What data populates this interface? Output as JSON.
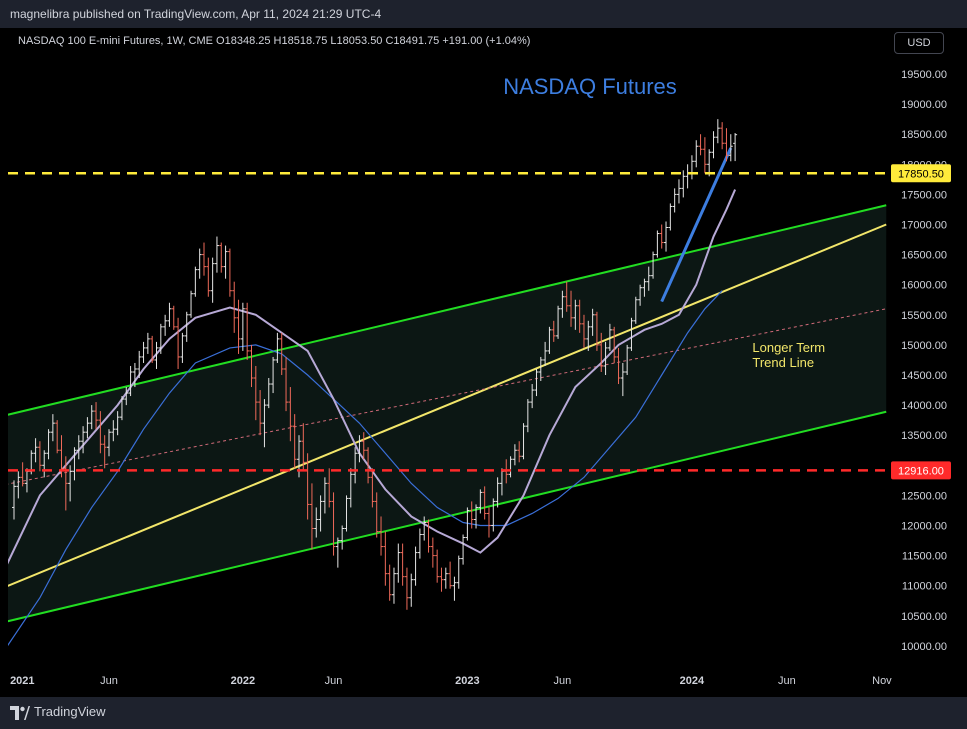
{
  "header": {
    "published": "magnelibra published on TradingView.com, Apr 11, 2024 21:29 UTC-4"
  },
  "symbol_info": "NASDAQ 100 E-mini Futures, 1W, CME  O18348.25  H18518.75  L18053.50  C18491.75  +191.00 (+1.04%)",
  "currency_button": "USD",
  "footer": {
    "brand": "TradingView",
    "logo": "tradingview-logo-icon"
  },
  "colors": {
    "background": "#000000",
    "up_bar": "#e6e6e6",
    "down_bar": "#f06a5a",
    "channel_green": "#22dd22",
    "trend_yellow": "#f2e66a",
    "resistance_dash": "#ffeb3b",
    "support_dash": "#ff2a2a",
    "title_blue": "#3d7ee0",
    "ma_fast": "#b7a9d6",
    "ma_slow": "#3a6fd8",
    "text": "#d1d4dc"
  },
  "chart_data": {
    "type": "candlestick",
    "title": "NASDAQ Futures",
    "y_axis": {
      "min": 9700,
      "max": 19900,
      "ticks": [
        10000,
        10500,
        11000,
        11500,
        12000,
        12500,
        13000,
        13500,
        14000,
        14500,
        15000,
        15500,
        16000,
        16500,
        17000,
        17500,
        18000,
        18500,
        19000,
        19500
      ],
      "tick_labels": [
        "10000.00",
        "10500.00",
        "11000.00",
        "11500.00",
        "12000.00",
        "12500.00",
        "13000.00",
        "13500.00",
        "14000.00",
        "14500.00",
        "15000.00",
        "15500.00",
        "16000.00",
        "16500.00",
        "17000.00",
        "17500.00",
        "18000.00",
        "18500.00",
        "19000.00",
        "19500.00"
      ],
      "price_tags": [
        {
          "label": "17850.50",
          "value": 17850.5,
          "style": "yellow"
        },
        {
          "label": "12916.00",
          "value": 12916.0,
          "style": "red"
        }
      ]
    },
    "x_axis": {
      "week_min": 0,
      "week_max": 202,
      "ticks": [
        {
          "label": "2021",
          "week": 1,
          "bold": true
        },
        {
          "label": "Jun",
          "week": 22,
          "bold": false
        },
        {
          "label": "2022",
          "week": 53,
          "bold": true
        },
        {
          "label": "Jun",
          "week": 74,
          "bold": false
        },
        {
          "label": "2023",
          "week": 105,
          "bold": true
        },
        {
          "label": "Jun",
          "week": 127,
          "bold": false
        },
        {
          "label": "2024",
          "week": 157,
          "bold": true
        },
        {
          "label": "Jun",
          "week": 179,
          "bold": false
        },
        {
          "label": "Nov",
          "week": 201,
          "bold": false
        }
      ]
    },
    "horizontal_lines": [
      {
        "value": 17850.5,
        "color": "#ffeb3b",
        "dash": "dashed"
      },
      {
        "value": 12916.0,
        "color": "#ff2a2a",
        "dash": "dashed"
      }
    ],
    "trend_lines": [
      {
        "name": "channel-upper",
        "from": [
          -2,
          13830
        ],
        "to": [
          202,
          17320
        ],
        "color": "#22dd22",
        "dash": "solid"
      },
      {
        "name": "channel-lower",
        "from": [
          -2,
          10400
        ],
        "to": [
          202,
          13890
        ],
        "color": "#22dd22",
        "dash": "solid"
      },
      {
        "name": "longer-term-trend",
        "from": [
          -2,
          10980
        ],
        "to": [
          202,
          17000
        ],
        "color": "#f2e66a",
        "dash": "solid"
      },
      {
        "name": "mid-channel",
        "from": [
          -2,
          12680
        ],
        "to": [
          202,
          15600
        ],
        "color": "#d06a78",
        "dash": "dotted"
      },
      {
        "name": "short-term-trend",
        "from": [
          150,
          15720
        ],
        "to": [
          166,
          18270
        ],
        "color": "#3d7ee0",
        "dash": "solid"
      }
    ],
    "annotations": [
      {
        "text_lines": [
          "Longer Term",
          "Trend Line"
        ],
        "week": 171,
        "value": 14880,
        "color": "#f2e66a"
      }
    ],
    "ma_fast": [
      [
        -2,
        11300
      ],
      [
        6,
        12500
      ],
      [
        12,
        13000
      ],
      [
        18,
        13500
      ],
      [
        24,
        14000
      ],
      [
        30,
        14600
      ],
      [
        36,
        15100
      ],
      [
        42,
        15450
      ],
      [
        50,
        15620
      ],
      [
        56,
        15500
      ],
      [
        62,
        15200
      ],
      [
        68,
        14900
      ],
      [
        74,
        14100
      ],
      [
        80,
        13200
      ],
      [
        86,
        12600
      ],
      [
        92,
        12150
      ],
      [
        98,
        11900
      ],
      [
        104,
        11700
      ],
      [
        108,
        11550
      ],
      [
        112,
        11800
      ],
      [
        118,
        12500
      ],
      [
        124,
        13500
      ],
      [
        130,
        14300
      ],
      [
        136,
        14700
      ],
      [
        140,
        15000
      ],
      [
        146,
        15250
      ],
      [
        150,
        15350
      ],
      [
        154,
        15500
      ],
      [
        158,
        16000
      ],
      [
        162,
        16800
      ],
      [
        165,
        17250
      ],
      [
        167,
        17580
      ]
    ],
    "ma_slow": [
      [
        -2,
        9950
      ],
      [
        6,
        10800
      ],
      [
        12,
        11600
      ],
      [
        18,
        12300
      ],
      [
        24,
        12900
      ],
      [
        30,
        13600
      ],
      [
        36,
        14200
      ],
      [
        42,
        14700
      ],
      [
        50,
        14950
      ],
      [
        56,
        15000
      ],
      [
        62,
        14850
      ],
      [
        68,
        14500
      ],
      [
        74,
        14100
      ],
      [
        80,
        13700
      ],
      [
        86,
        13200
      ],
      [
        92,
        12700
      ],
      [
        98,
        12300
      ],
      [
        104,
        12050
      ],
      [
        108,
        12000
      ],
      [
        114,
        12000
      ],
      [
        120,
        12200
      ],
      [
        126,
        12450
      ],
      [
        132,
        12800
      ],
      [
        138,
        13300
      ],
      [
        144,
        13800
      ],
      [
        150,
        14500
      ],
      [
        156,
        15200
      ],
      [
        160,
        15600
      ],
      [
        164,
        15900
      ]
    ],
    "ohlc": [
      [
        12300,
        12750,
        12100,
        12650
      ],
      [
        12650,
        12900,
        12450,
        12800
      ],
      [
        12800,
        13050,
        12650,
        12700
      ],
      [
        12700,
        12950,
        12550,
        12900
      ],
      [
        12900,
        13250,
        12850,
        13200
      ],
      [
        13200,
        13450,
        13050,
        13300
      ],
      [
        13300,
        13400,
        12900,
        13000
      ],
      [
        13000,
        13250,
        12800,
        13200
      ],
      [
        13200,
        13600,
        13100,
        13550
      ],
      [
        13550,
        13850,
        13400,
        13700
      ],
      [
        13700,
        13750,
        13200,
        13250
      ],
      [
        13250,
        13500,
        12800,
        12950
      ],
      [
        12950,
        13150,
        12250,
        12700
      ],
      [
        12700,
        13000,
        12400,
        12900
      ],
      [
        12900,
        13300,
        12750,
        13250
      ],
      [
        13250,
        13500,
        13100,
        13400
      ],
      [
        13400,
        13650,
        13200,
        13550
      ],
      [
        13550,
        13800,
        13450,
        13700
      ],
      [
        13700,
        14000,
        13600,
        13900
      ],
      [
        13900,
        14050,
        13600,
        13750
      ],
      [
        13750,
        13900,
        13200,
        13350
      ],
      [
        13350,
        13500,
        12950,
        13300
      ],
      [
        13300,
        13600,
        13150,
        13550
      ],
      [
        13550,
        13750,
        13400,
        13600
      ],
      [
        13600,
        13900,
        13500,
        13800
      ],
      [
        13800,
        14150,
        13750,
        14100
      ],
      [
        14100,
        14300,
        14000,
        14200
      ],
      [
        14200,
        14650,
        14150,
        14550
      ],
      [
        14550,
        14700,
        14300,
        14600
      ],
      [
        14600,
        14900,
        14450,
        14800
      ],
      [
        14800,
        15050,
        14700,
        14950
      ],
      [
        14950,
        15200,
        14850,
        15100
      ],
      [
        15100,
        15150,
        14700,
        14750
      ],
      [
        14750,
        15050,
        14600,
        14950
      ],
      [
        14950,
        15350,
        14850,
        15300
      ],
      [
        15300,
        15500,
        15150,
        15400
      ],
      [
        15400,
        15700,
        15300,
        15600
      ],
      [
        15600,
        15650,
        15250,
        15300
      ],
      [
        15300,
        15450,
        14600,
        14800
      ],
      [
        14800,
        15200,
        14700,
        15150
      ],
      [
        15150,
        15550,
        15050,
        15500
      ],
      [
        15500,
        15900,
        15450,
        15850
      ],
      [
        15850,
        16300,
        15800,
        16250
      ],
      [
        16250,
        16600,
        16100,
        16500
      ],
      [
        16500,
        16700,
        16150,
        16300
      ],
      [
        16300,
        16450,
        15800,
        15900
      ],
      [
        15900,
        16450,
        15700,
        16350
      ],
      [
        16350,
        16800,
        16200,
        16650
      ],
      [
        16650,
        16700,
        16200,
        16300
      ],
      [
        16300,
        16650,
        16100,
        16550
      ],
      [
        16550,
        16600,
        15800,
        15900
      ],
      [
        15900,
        16050,
        15200,
        15450
      ],
      [
        15450,
        15750,
        14850,
        15100
      ],
      [
        15100,
        15700,
        14900,
        15600
      ],
      [
        15600,
        15700,
        14750,
        14900
      ],
      [
        14900,
        15000,
        14300,
        14450
      ],
      [
        14450,
        14650,
        13750,
        14050
      ],
      [
        14050,
        14250,
        13500,
        13700
      ],
      [
        13700,
        14100,
        13300,
        14000
      ],
      [
        14000,
        14450,
        13950,
        14350
      ],
      [
        14350,
        14800,
        14200,
        14750
      ],
      [
        14750,
        15200,
        14700,
        15100
      ],
      [
        15100,
        15200,
        14500,
        14600
      ],
      [
        14600,
        14800,
        13900,
        14050
      ],
      [
        14050,
        14300,
        13400,
        13650
      ],
      [
        13650,
        13850,
        12950,
        13100
      ],
      [
        13100,
        13500,
        12800,
        13400
      ],
      [
        13400,
        13700,
        12900,
        13050
      ],
      [
        13050,
        13200,
        12100,
        12350
      ],
      [
        12350,
        12700,
        11600,
        11950
      ],
      [
        11950,
        12300,
        11800,
        12100
      ],
      [
        12100,
        12500,
        11900,
        12400
      ],
      [
        12400,
        12800,
        12200,
        12700
      ],
      [
        12700,
        12950,
        12300,
        12400
      ],
      [
        12400,
        12550,
        11500,
        11650
      ],
      [
        11650,
        11800,
        11300,
        11750
      ],
      [
        11750,
        12000,
        11600,
        11950
      ],
      [
        11950,
        12500,
        11900,
        12450
      ],
      [
        12450,
        12950,
        12300,
        12850
      ],
      [
        12850,
        13300,
        12700,
        13200
      ],
      [
        13200,
        13500,
        13050,
        13400
      ],
      [
        13400,
        13550,
        13100,
        13250
      ],
      [
        13250,
        13300,
        12700,
        12800
      ],
      [
        12800,
        12950,
        12300,
        12400
      ],
      [
        12400,
        12550,
        11800,
        11900
      ],
      [
        11900,
        12150,
        11500,
        11650
      ],
      [
        11650,
        11900,
        11000,
        11200
      ],
      [
        11200,
        11350,
        10750,
        10850
      ],
      [
        10850,
        11300,
        10700,
        11200
      ],
      [
        11200,
        11700,
        11050,
        11550
      ],
      [
        11550,
        11700,
        11000,
        11150
      ],
      [
        11150,
        11300,
        10600,
        10800
      ],
      [
        10800,
        11200,
        10650,
        11100
      ],
      [
        11100,
        11650,
        11000,
        11550
      ],
      [
        11550,
        11950,
        11450,
        11850
      ],
      [
        11850,
        12150,
        11750,
        12050
      ],
      [
        12050,
        12100,
        11550,
        11650
      ],
      [
        11650,
        11800,
        11300,
        11500
      ],
      [
        11500,
        11600,
        11050,
        11150
      ],
      [
        11150,
        11300,
        10900,
        11100
      ],
      [
        11100,
        11300,
        10950,
        11200
      ],
      [
        11200,
        11400,
        10950,
        11000
      ],
      [
        11000,
        11150,
        10750,
        11050
      ],
      [
        11050,
        11500,
        10950,
        11450
      ],
      [
        11450,
        11850,
        11350,
        11800
      ],
      [
        11800,
        12300,
        11750,
        12250
      ],
      [
        12250,
        12400,
        11950,
        12100
      ],
      [
        12100,
        12350,
        11950,
        12300
      ],
      [
        12300,
        12600,
        12200,
        12550
      ],
      [
        12550,
        12650,
        12100,
        12200
      ],
      [
        12200,
        12300,
        11800,
        12000
      ],
      [
        12000,
        12450,
        11900,
        12400
      ],
      [
        12400,
        12800,
        12300,
        12700
      ],
      [
        12700,
        12950,
        12500,
        12900
      ],
      [
        12900,
        13100,
        12700,
        12850
      ],
      [
        12850,
        13150,
        12800,
        13100
      ],
      [
        13100,
        13350,
        13000,
        13250
      ],
      [
        13250,
        13400,
        13050,
        13150
      ],
      [
        13150,
        13700,
        13100,
        13650
      ],
      [
        13650,
        14100,
        13550,
        14050
      ],
      [
        14050,
        14350,
        13950,
        14250
      ],
      [
        14250,
        14600,
        14150,
        14550
      ],
      [
        14550,
        14800,
        14400,
        14750
      ],
      [
        14750,
        15050,
        14650,
        14900
      ],
      [
        14900,
        15300,
        14850,
        15250
      ],
      [
        15250,
        15400,
        15050,
        15150
      ],
      [
        15150,
        15650,
        15100,
        15600
      ],
      [
        15600,
        15900,
        15450,
        15800
      ],
      [
        15800,
        16050,
        15550,
        15650
      ],
      [
        15650,
        15900,
        15300,
        15450
      ],
      [
        15450,
        15750,
        15250,
        15650
      ],
      [
        15650,
        15750,
        15200,
        15350
      ],
      [
        15350,
        15500,
        14950,
        15100
      ],
      [
        15100,
        15400,
        14900,
        15300
      ],
      [
        15300,
        15600,
        15150,
        15500
      ],
      [
        15500,
        15550,
        14900,
        15000
      ],
      [
        15000,
        15200,
        14550,
        14650
      ],
      [
        14650,
        15050,
        14500,
        14950
      ],
      [
        14950,
        15350,
        14900,
        15250
      ],
      [
        15250,
        15300,
        14700,
        14800
      ],
      [
        14800,
        14950,
        14350,
        14450
      ],
      [
        14450,
        14700,
        14150,
        14550
      ],
      [
        14550,
        15000,
        14500,
        14950
      ],
      [
        14950,
        15450,
        14900,
        15400
      ],
      [
        15400,
        15800,
        15350,
        15750
      ],
      [
        15750,
        16000,
        15650,
        15950
      ],
      [
        15950,
        16100,
        15800,
        16050
      ],
      [
        16050,
        16300,
        15900,
        16150
      ],
      [
        16150,
        16550,
        16100,
        16500
      ],
      [
        16500,
        16900,
        16450,
        16850
      ],
      [
        16850,
        17000,
        16600,
        16700
      ],
      [
        16700,
        17050,
        16550,
        16950
      ],
      [
        16950,
        17350,
        16900,
        17300
      ],
      [
        17300,
        17600,
        17200,
        17500
      ],
      [
        17500,
        17750,
        17350,
        17600
      ],
      [
        17600,
        17900,
        17450,
        17800
      ],
      [
        17800,
        18000,
        17600,
        17850
      ],
      [
        17850,
        18150,
        17750,
        18050
      ],
      [
        18050,
        18400,
        17950,
        18300
      ],
      [
        18300,
        18500,
        18150,
        18250
      ],
      [
        18250,
        18450,
        17850,
        18000
      ],
      [
        18000,
        18250,
        17800,
        18200
      ],
      [
        18200,
        18550,
        18100,
        18450
      ],
      [
        18450,
        18750,
        18350,
        18600
      ],
      [
        18600,
        18700,
        18250,
        18350
      ],
      [
        18350,
        18600,
        18050,
        18150
      ],
      [
        18150,
        18500,
        18050,
        18300
      ],
      [
        18348.25,
        18518.75,
        18053.5,
        18491.75
      ]
    ]
  }
}
